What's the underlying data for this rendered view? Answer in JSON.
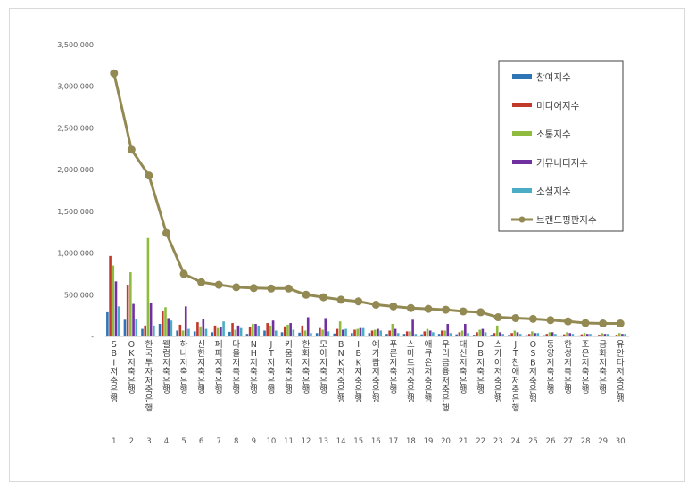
{
  "chart_data": {
    "type": "bar",
    "title": "",
    "xlabel": "",
    "ylabel": "",
    "ylim": [
      0,
      3500000
    ],
    "yticks": [
      "-",
      "500,000",
      "1,000,000",
      "1,500,000",
      "2,000,000",
      "2,500,000",
      "3,000,000",
      "3,500,000"
    ],
    "grid": false,
    "legend_position": "top-right",
    "categories": [
      "SBI저축은행",
      "OK저축은행",
      "한국투자저축은행",
      "웰컴저축은행",
      "하나저축은행",
      "신한저축은행",
      "페퍼저축은행",
      "다올저축은행",
      "NH저축은행",
      "JT저축은행",
      "키움저축은행",
      "한화저축은행",
      "모아저축은행",
      "BNK저축은행",
      "IBK저축은행",
      "예가람저축은행",
      "푸른저축은행",
      "스마트저축은행",
      "애큐온저축은행",
      "우리금융저축은행",
      "대신저축은행",
      "DB저축은행",
      "스카이저축은행",
      "JT친애저축은행",
      "OSB저축은행",
      "동양저축은행",
      "한성저축은행",
      "조은저축은행",
      "금화저축은행",
      "유안타저축은행"
    ],
    "indices": [
      "1",
      "2",
      "3",
      "4",
      "5",
      "6",
      "7",
      "8",
      "9",
      "10",
      "11",
      "12",
      "13",
      "14",
      "15",
      "16",
      "17",
      "18",
      "19",
      "20",
      "21",
      "22",
      "23",
      "24",
      "25",
      "26",
      "27",
      "28",
      "29",
      "30"
    ],
    "series": [
      {
        "name": "참여지수",
        "color": "#2e75b6",
        "kind": "bar",
        "values": [
          290000,
          200000,
          90000,
          150000,
          70000,
          60000,
          50000,
          55000,
          30000,
          70000,
          50000,
          45000,
          40000,
          35000,
          40000,
          40000,
          30000,
          30000,
          25000,
          30000,
          25000,
          20000,
          20000,
          18000,
          15000,
          15000,
          12000,
          12000,
          10000,
          10000
        ]
      },
      {
        "name": "미디어지수",
        "color": "#c0392b",
        "kind": "bar",
        "values": [
          965000,
          620000,
          130000,
          310000,
          140000,
          170000,
          130000,
          160000,
          110000,
          160000,
          120000,
          130000,
          100000,
          90000,
          80000,
          70000,
          70000,
          60000,
          60000,
          70000,
          50000,
          50000,
          40000,
          40000,
          30000,
          30000,
          25000,
          25000,
          20000,
          20000
        ]
      },
      {
        "name": "소통지수",
        "color": "#8fbc3f",
        "kind": "bar",
        "values": [
          850000,
          770000,
          1180000,
          350000,
          70000,
          120000,
          100000,
          80000,
          150000,
          130000,
          140000,
          70000,
          80000,
          180000,
          90000,
          80000,
          150000,
          60000,
          90000,
          70000,
          70000,
          80000,
          130000,
          70000,
          60000,
          50000,
          50000,
          40000,
          40000,
          40000
        ]
      },
      {
        "name": "커뮤니티지수",
        "color": "#7030a0",
        "kind": "bar",
        "values": [
          660000,
          390000,
          400000,
          220000,
          360000,
          210000,
          110000,
          130000,
          150000,
          190000,
          160000,
          230000,
          220000,
          80000,
          100000,
          90000,
          90000,
          200000,
          70000,
          150000,
          150000,
          90000,
          50000,
          50000,
          40000,
          50000,
          40000,
          30000,
          30000,
          30000
        ]
      },
      {
        "name": "소셜지수",
        "color": "#4bacc6",
        "kind": "bar",
        "values": [
          360000,
          210000,
          130000,
          190000,
          90000,
          90000,
          180000,
          100000,
          130000,
          70000,
          80000,
          40000,
          60000,
          90000,
          100000,
          70000,
          40000,
          30000,
          50000,
          40000,
          40000,
          50000,
          30000,
          30000,
          40000,
          30000,
          30000,
          30000,
          30000,
          30000
        ]
      },
      {
        "name": "브랜드평판지수",
        "color": "#938953",
        "kind": "line",
        "values": [
          3155000,
          2240000,
          1930000,
          1240000,
          750000,
          650000,
          620000,
          590000,
          580000,
          575000,
          575000,
          500000,
          470000,
          440000,
          420000,
          380000,
          360000,
          340000,
          330000,
          320000,
          300000,
          290000,
          230000,
          220000,
          210000,
          195000,
          180000,
          160000,
          155000,
          155000
        ]
      }
    ]
  }
}
